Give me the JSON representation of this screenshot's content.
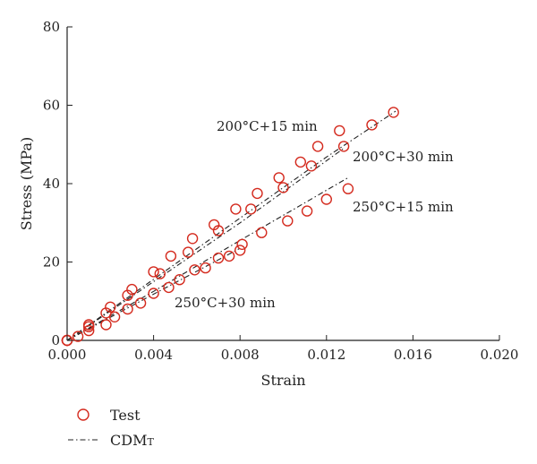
{
  "chart_data": {
    "type": "scatter",
    "xlabel": "Strain",
    "ylabel": "Stress (MPa)",
    "xlim": [
      0.0,
      0.02
    ],
    "ylim": [
      0,
      80
    ],
    "x_ticks": [
      "0.000",
      "0.004",
      "0.008",
      "0.012",
      "0.016",
      "0.020"
    ],
    "y_ticks": [
      "0",
      "20",
      "40",
      "60",
      "80"
    ],
    "grid": false,
    "legend_position": "bottom-left",
    "legend": {
      "test_label": "Test",
      "model_main": "CDM",
      "model_sub": "T"
    },
    "colors": {
      "test_marker": "#d42a1e",
      "model_line": "#222222"
    },
    "series": [
      {
        "name": "200°C+15 min",
        "label": "200°C+15 min",
        "test": [
          [
            0.0,
            0.0
          ],
          [
            0.001,
            3.5
          ],
          [
            0.002,
            8.5
          ],
          [
            0.003,
            13.0
          ],
          [
            0.004,
            17.5
          ],
          [
            0.0048,
            21.5
          ],
          [
            0.0058,
            26.0
          ],
          [
            0.0068,
            29.5
          ],
          [
            0.0078,
            33.5
          ],
          [
            0.0088,
            37.5
          ],
          [
            0.0098,
            41.5
          ],
          [
            0.0108,
            45.5
          ],
          [
            0.0116,
            49.5
          ],
          [
            0.0126,
            53.5
          ],
          [
            0.0141,
            55.0
          ],
          [
            0.0151,
            58.2
          ]
        ],
        "model": [
          [
            0.0,
            0.0
          ],
          [
            0.004,
            15.6
          ],
          [
            0.008,
            31.2
          ],
          [
            0.012,
            46.8
          ],
          [
            0.0152,
            58.5
          ]
        ]
      },
      {
        "name": "200°C+30 min",
        "label": "200°C+30 min",
        "test": [
          [
            0.0,
            0.0
          ],
          [
            0.001,
            4.0
          ],
          [
            0.0018,
            7.0
          ],
          [
            0.0028,
            11.5
          ],
          [
            0.0043,
            17.0
          ],
          [
            0.0056,
            22.5
          ],
          [
            0.007,
            28.0
          ],
          [
            0.0085,
            33.5
          ],
          [
            0.01,
            39.0
          ],
          [
            0.0113,
            44.5
          ],
          [
            0.0128,
            49.5
          ]
        ],
        "model": [
          [
            0.0,
            0.0
          ],
          [
            0.004,
            15.0
          ],
          [
            0.008,
            30.0
          ],
          [
            0.0128,
            49.0
          ]
        ]
      },
      {
        "name": "250°C+15 min",
        "label": "250°C+15 min",
        "test": [
          [
            0.0,
            0.0
          ],
          [
            0.001,
            2.5
          ],
          [
            0.0022,
            6.0
          ],
          [
            0.0034,
            9.5
          ],
          [
            0.0047,
            13.5
          ],
          [
            0.0059,
            18.0
          ],
          [
            0.007,
            21.0
          ],
          [
            0.0081,
            24.5
          ],
          [
            0.009,
            27.5
          ],
          [
            0.0102,
            30.5
          ],
          [
            0.0111,
            33.0
          ],
          [
            0.012,
            36.0
          ],
          [
            0.013,
            38.7
          ]
        ],
        "model": [
          [
            0.0,
            0.0
          ],
          [
            0.004,
            12.5
          ],
          [
            0.008,
            25.5
          ],
          [
            0.013,
            41.5
          ]
        ]
      },
      {
        "name": "250°C+30 min",
        "label": "250°C+30 min",
        "test": [
          [
            0.0,
            0.0
          ],
          [
            0.0005,
            1.0
          ],
          [
            0.0018,
            4.0
          ],
          [
            0.0028,
            8.0
          ],
          [
            0.004,
            12.0
          ],
          [
            0.0052,
            15.5
          ],
          [
            0.0064,
            18.5
          ],
          [
            0.0075,
            21.5
          ],
          [
            0.008,
            23.0
          ]
        ],
        "model": [
          [
            0.0,
            0.0
          ],
          [
            0.004,
            11.8
          ],
          [
            0.008,
            23.5
          ]
        ]
      }
    ]
  }
}
